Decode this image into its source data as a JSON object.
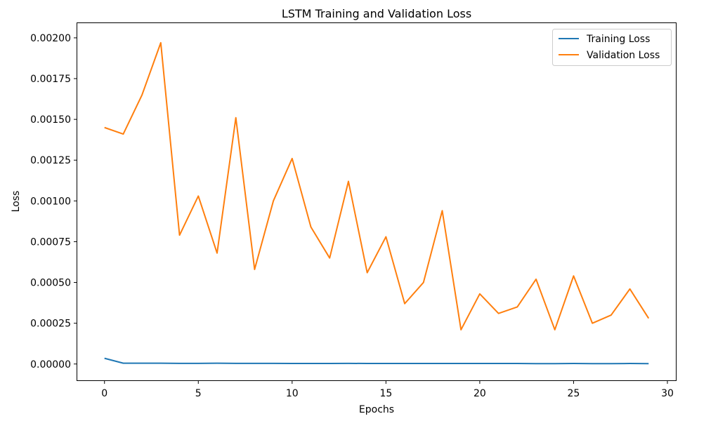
{
  "chart_data": {
    "type": "line",
    "title": "LSTM Training and Validation Loss",
    "xlabel": "Epochs",
    "ylabel": "Loss",
    "xlim": [
      -1.45,
      30.45
    ],
    "ylim": [
      -0.0001,
      0.00209
    ],
    "xticks": [
      0,
      5,
      10,
      15,
      20,
      25,
      30
    ],
    "xtick_labels": [
      "0",
      "5",
      "10",
      "15",
      "20",
      "25",
      "30"
    ],
    "yticks": [
      0,
      0.00025,
      0.0005,
      0.00075,
      0.001,
      0.00125,
      0.0015,
      0.00175,
      0.002
    ],
    "ytick_labels": [
      "0.00000",
      "0.00025",
      "0.00050",
      "0.00075",
      "0.00100",
      "0.00125",
      "0.00150",
      "0.00175",
      "0.00200"
    ],
    "grid": false,
    "legend_position": "top-right",
    "x": [
      0,
      1,
      2,
      3,
      4,
      5,
      6,
      7,
      8,
      9,
      10,
      11,
      12,
      13,
      14,
      15,
      16,
      17,
      18,
      19,
      20,
      21,
      22,
      23,
      24,
      25,
      26,
      27,
      28,
      29
    ],
    "series": [
      {
        "name": "Training Loss",
        "color": "#1f77b4",
        "values": [
          3.5e-05,
          5e-06,
          5e-06,
          5e-06,
          4e-06,
          4e-06,
          5e-06,
          4e-06,
          4e-06,
          4e-06,
          3e-06,
          3e-06,
          3e-06,
          4e-06,
          3e-06,
          3e-06,
          3e-06,
          3e-06,
          3e-06,
          3e-06,
          3e-06,
          3e-06,
          3e-06,
          2e-06,
          2e-06,
          3e-06,
          2e-06,
          2e-06,
          3e-06,
          2e-06
        ]
      },
      {
        "name": "Validation Loss",
        "color": "#ff7f0e",
        "values": [
          0.00145,
          0.00141,
          0.00165,
          0.00197,
          0.00079,
          0.00103,
          0.00068,
          0.00151,
          0.00058,
          0.001,
          0.00126,
          0.00084,
          0.00065,
          0.00112,
          0.00056,
          0.00078,
          0.00037,
          0.0005,
          0.00094,
          0.00021,
          0.00043,
          0.00031,
          0.00035,
          0.00052,
          0.00021,
          0.00054,
          0.00025,
          0.0003,
          0.00046,
          0.00028
        ]
      }
    ]
  }
}
